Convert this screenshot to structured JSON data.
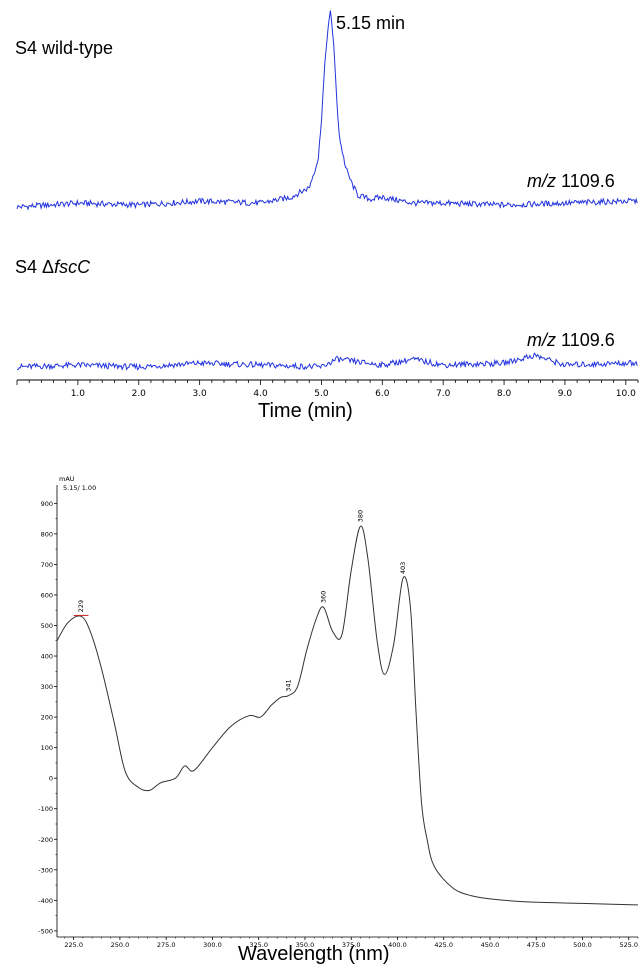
{
  "chart_data": [
    {
      "type": "line",
      "panel": "chromatogram-top",
      "sample_label": "S4 wild-type",
      "ion_label_mz": "m/z",
      "ion_label_value": "1109.6",
      "peak_annotation": "5.15 min",
      "color": "#2233dd",
      "series": [
        {
          "x": [
            0.0,
            1.0,
            2.0,
            3.0,
            4.0,
            4.5,
            4.8,
            4.95,
            5.0,
            5.05,
            5.1,
            5.15,
            5.2,
            5.25,
            5.3,
            5.4,
            5.5,
            5.6,
            5.8,
            6.0,
            6.5,
            7.0,
            8.0,
            9.0,
            10.0
          ],
          "y": [
            0.0,
            0.02,
            0.01,
            0.03,
            0.02,
            0.05,
            0.1,
            0.25,
            0.45,
            0.7,
            0.9,
            1.0,
            0.85,
            0.55,
            0.35,
            0.2,
            0.12,
            0.06,
            0.04,
            0.05,
            0.02,
            0.02,
            0.01,
            0.02,
            0.03
          ]
        }
      ]
    },
    {
      "type": "line",
      "panel": "chromatogram-bottom",
      "sample_label_prefix": "S4 ",
      "sample_label_delta": "Δ",
      "sample_label_gene": "fscC",
      "ion_label_mz": "m/z",
      "ion_label_value": "1109.6",
      "color": "#2233dd",
      "series": [
        {
          "x": [
            0.0,
            1.0,
            2.0,
            3.0,
            4.0,
            5.0,
            5.25,
            6.0,
            6.5,
            7.0,
            8.0,
            8.5,
            9.0,
            10.0
          ],
          "y": [
            0.0,
            0.01,
            0.0,
            0.02,
            0.01,
            0.0,
            0.04,
            0.01,
            0.04,
            0.01,
            0.02,
            0.06,
            0.01,
            0.02
          ]
        }
      ]
    },
    {
      "type": "axis",
      "panel": "time-axis",
      "xlabel": "Time (min)",
      "xlim": [
        0.0,
        10.2
      ],
      "ticks": [
        "1.0",
        "2.0",
        "3.0",
        "4.0",
        "5.0",
        "6.0",
        "7.0",
        "8.0",
        "9.0",
        "10.0"
      ],
      "tick_values": [
        1,
        2,
        3,
        4,
        5,
        6,
        7,
        8,
        9,
        10
      ]
    },
    {
      "type": "line",
      "panel": "uv-spectrum",
      "ylabel": "mAU",
      "header": "5.15/ 1.00",
      "xlabel": "Wavelength (nm)",
      "xlim": [
        216,
        530
      ],
      "ylim": [
        -520,
        960
      ],
      "x_ticks": [
        "225.0",
        "250.0",
        "275.0",
        "300.0",
        "325.0",
        "350.0",
        "375.0",
        "400.0",
        "425.0",
        "450.0",
        "475.0",
        "500.0",
        "525.0"
      ],
      "x_tick_values": [
        225,
        250,
        275,
        300,
        325,
        350,
        375,
        400,
        425,
        450,
        475,
        500,
        525
      ],
      "y_ticks": [
        "900",
        "800",
        "700",
        "600",
        "500",
        "400",
        "300",
        "200",
        "100",
        "0",
        "-100",
        "-200",
        "-300",
        "-400",
        "-500"
      ],
      "y_tick_values": [
        900,
        800,
        700,
        600,
        500,
        400,
        300,
        200,
        100,
        0,
        -100,
        -200,
        -300,
        -400,
        -500
      ],
      "peak_labels": [
        "229",
        "341",
        "360",
        "380",
        "403"
      ],
      "peak_label_x": [
        229,
        341,
        360,
        380,
        403
      ],
      "peak_label_y": [
        530,
        270,
        560,
        825,
        655
      ],
      "color": "#333333",
      "series": [
        {
          "x": [
            216,
            222,
            229,
            234,
            240,
            247,
            253,
            260,
            266,
            272,
            280,
            285,
            290,
            300,
            310,
            320,
            326,
            332,
            337,
            341,
            346,
            351,
            356,
            360,
            365,
            370,
            375,
            380,
            384,
            389,
            393,
            398,
            403,
            407,
            410,
            413,
            416,
            420,
            430,
            440,
            450,
            470,
            500,
            530
          ],
          "y": [
            450,
            510,
            530,
            480,
            360,
            180,
            20,
            -30,
            -40,
            -15,
            0,
            40,
            25,
            100,
            170,
            205,
            200,
            240,
            265,
            270,
            300,
            420,
            520,
            560,
            480,
            470,
            680,
            825,
            720,
            450,
            340,
            440,
            655,
            560,
            220,
            -80,
            -200,
            -290,
            -360,
            -385,
            -395,
            -405,
            -410,
            -415
          ]
        }
      ]
    }
  ]
}
